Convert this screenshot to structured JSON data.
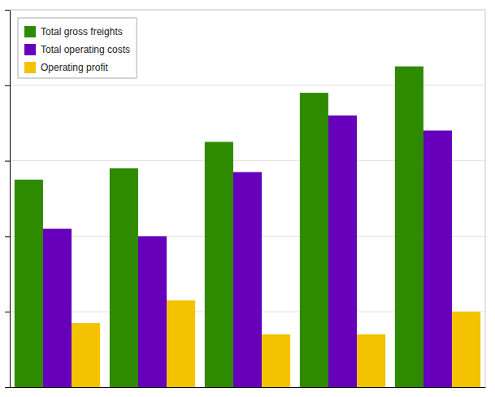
{
  "chart_data": {
    "type": "bar",
    "categories": [
      null,
      null,
      null,
      null,
      null
    ],
    "series": [
      {
        "name": "Total gross freights",
        "color": "#2e8b00",
        "values": [
          55,
          58,
          65,
          78,
          85
        ]
      },
      {
        "name": "Total operating costs",
        "color": "#6600bb",
        "values": [
          42,
          40,
          57,
          72,
          68
        ]
      },
      {
        "name": "Operating profit",
        "color": "#f5c200",
        "values": [
          17,
          23,
          14,
          14,
          20
        ]
      }
    ],
    "ylim": [
      0,
      100
    ],
    "yticks": [
      0,
      20,
      40,
      60,
      80,
      100
    ],
    "grid": true,
    "legend": "upper left",
    "tick_labels": false
  }
}
